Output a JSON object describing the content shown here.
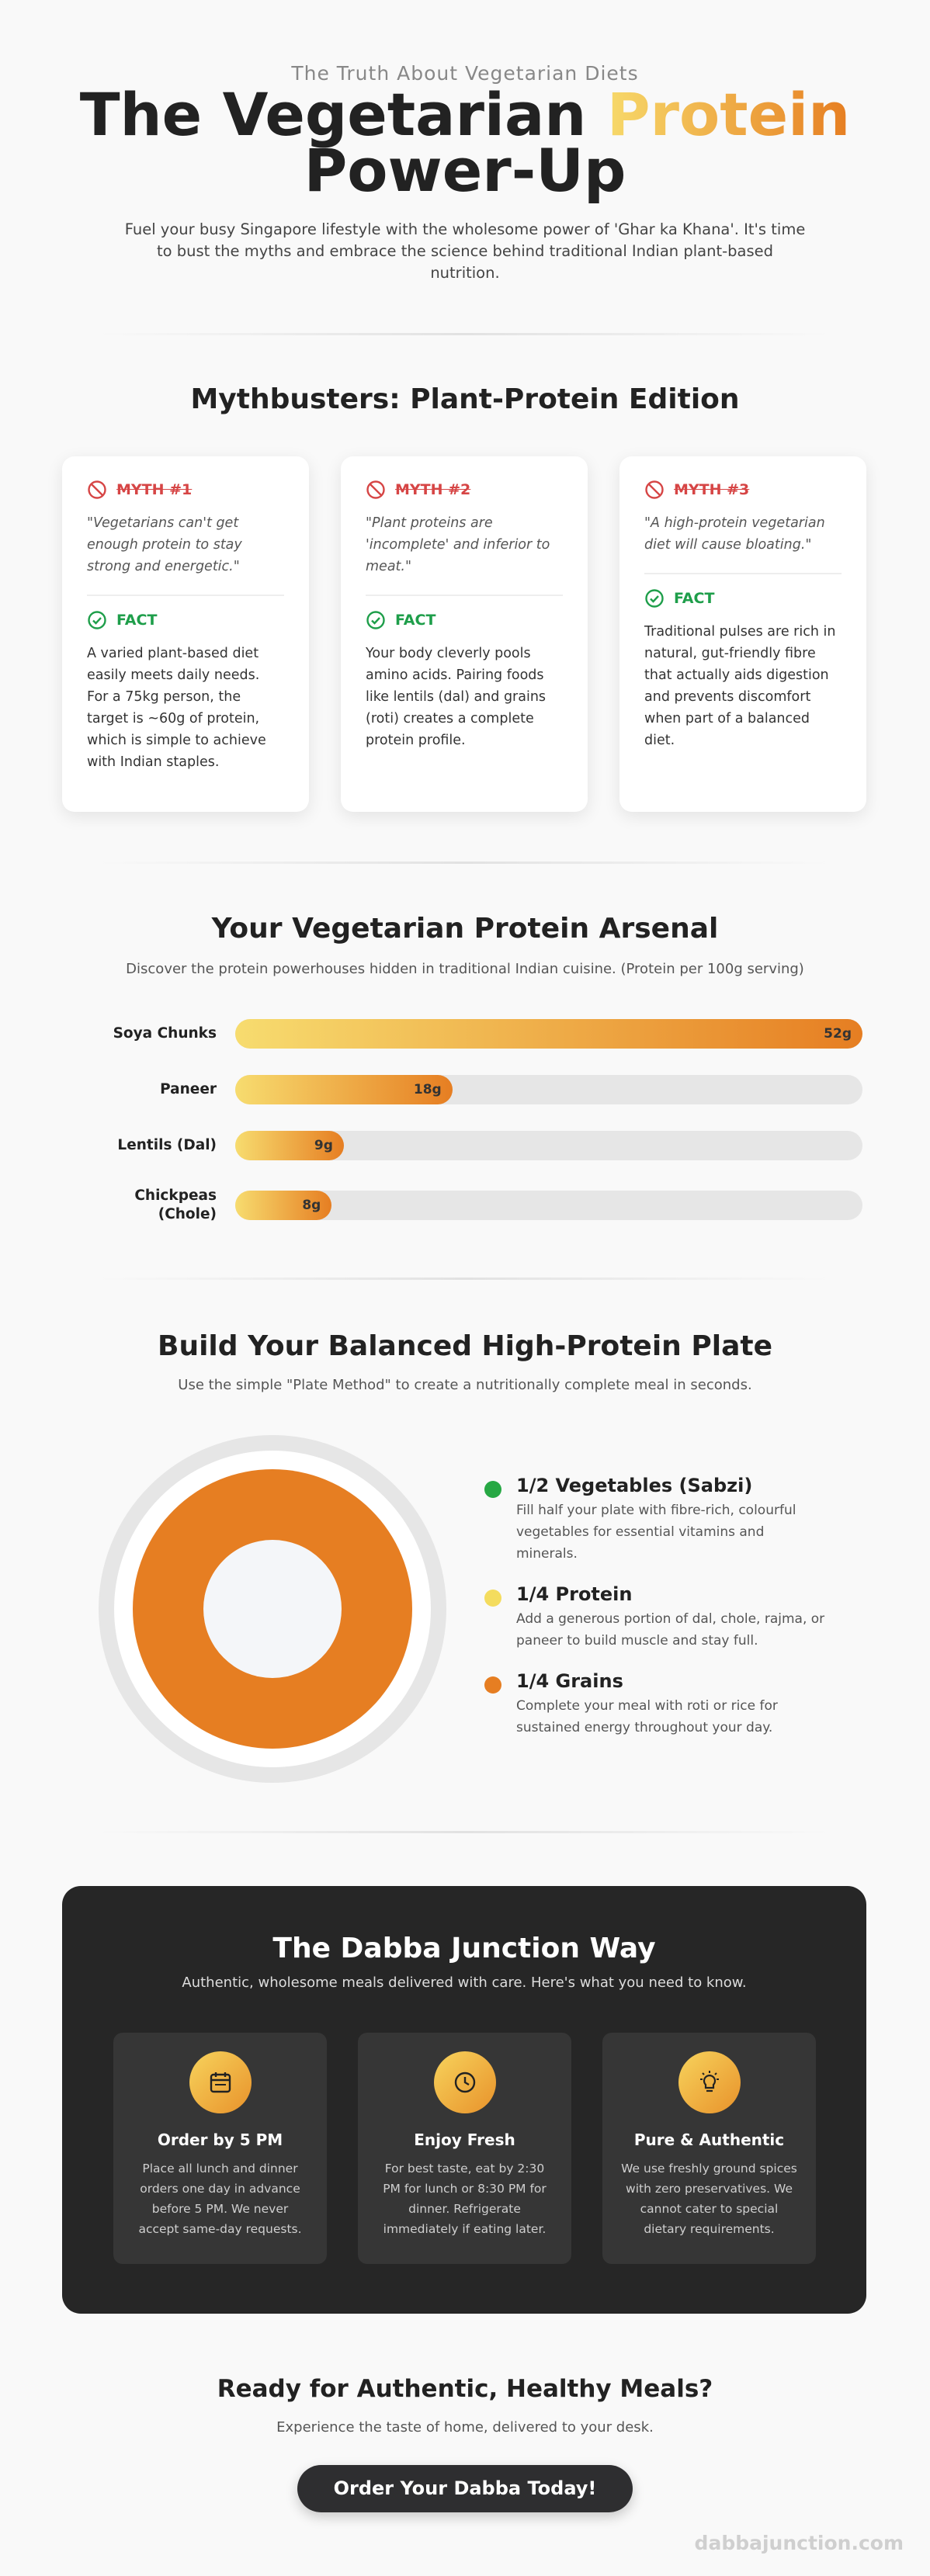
{
  "header": {
    "eyebrow": "The Truth About Vegetarian Diets",
    "title_start": "The Vegetarian",
    "title_highlight": "Protein",
    "title_end": "Power-Up",
    "intro": "Fuel your busy Singapore lifestyle with the wholesome power of 'Ghar ka Khana'. It's time to bust the myths and embrace the science behind traditional Indian plant-based nutrition."
  },
  "mythbusters": {
    "title": "Mythbusters: Plant-Protein Edition",
    "cards": [
      {
        "myth": "MYTH #1",
        "quote": "\"Vegetarians can't get enough protein to stay strong and energetic.\"",
        "fact_label": "FACT",
        "fact": "A varied plant-based diet easily meets daily needs. For a 75kg person, the target is ~60g of protein, which is simple to achieve with Indian staples."
      },
      {
        "myth": "MYTH #2",
        "quote": "\"Plant proteins are 'incomplete' and inferior to meat.\"",
        "fact_label": "FACT",
        "fact": "Your body cleverly pools amino acids. Pairing foods like lentils (dal) and grains (roti) creates a complete protein profile."
      },
      {
        "myth": "MYTH #3",
        "quote": "\"A high-protein vegetarian diet will cause bloating.\"",
        "fact_label": "FACT",
        "fact": "Traditional pulses are rich in natural, gut-friendly fibre that actually aids digestion and prevents discomfort when part of a balanced diet."
      }
    ]
  },
  "chart_data": {
    "type": "bar",
    "title": "Your Vegetarian Protein Arsenal",
    "subtitle": "Discover the protein powerhouses hidden in traditional Indian cuisine. (Protein per 100g serving)",
    "categories": [
      "Soya Chunks",
      "Paneer",
      "Lentils (Dal)",
      "Chickpeas (Chole)"
    ],
    "values": [
      52,
      18,
      9,
      8
    ],
    "value_labels": [
      "52g",
      "18g",
      "9g",
      "8g"
    ],
    "colors": [
      "#f7dc6f",
      "#e67e22"
    ]
  },
  "plate": {
    "title": "Build Your Balanced High-Protein Plate",
    "subtitle": "Use the simple \"Plate Method\" to create a nutritionally complete meal in seconds.",
    "items": [
      {
        "label": "1/2 Vegetables (Sabzi)",
        "color": "#27a844",
        "text": "Fill half your plate with fibre-rich, colourful vegetables for essential vitamins and minerals."
      },
      {
        "label": "1/4 Protein",
        "color": "#f4dc5e",
        "text": "Add a generous portion of dal, chole, rajma, or paneer to build muscle and stay full."
      },
      {
        "label": "1/4 Grains",
        "color": "#e67e22",
        "text": "Complete your meal with roti or rice for sustained energy throughout your day."
      }
    ]
  },
  "dabba": {
    "title": "The Dabba Junction Way",
    "subtitle": "Authentic, wholesome meals delivered with care. Here's what you need to know.",
    "cards": [
      {
        "title": "Order by 5 PM",
        "text": "Place all lunch and dinner orders one day in advance before 5 PM. We never accept same-day requests."
      },
      {
        "title": "Enjoy Fresh",
        "text": "For best taste, eat by 2:30 PM for lunch or 8:30 PM for dinner. Refrigerate immediately if eating later."
      },
      {
        "title": "Pure & Authentic",
        "text": "We use freshly ground spices with zero preservatives. We cannot cater to special dietary requirements."
      }
    ]
  },
  "cta": {
    "title": "Ready for Authentic, Healthy Meals?",
    "subtitle": "Experience the taste of home, delivered to your desk.",
    "button": "Order Your Dabba Today!"
  },
  "footer": "dabbajunction.com"
}
